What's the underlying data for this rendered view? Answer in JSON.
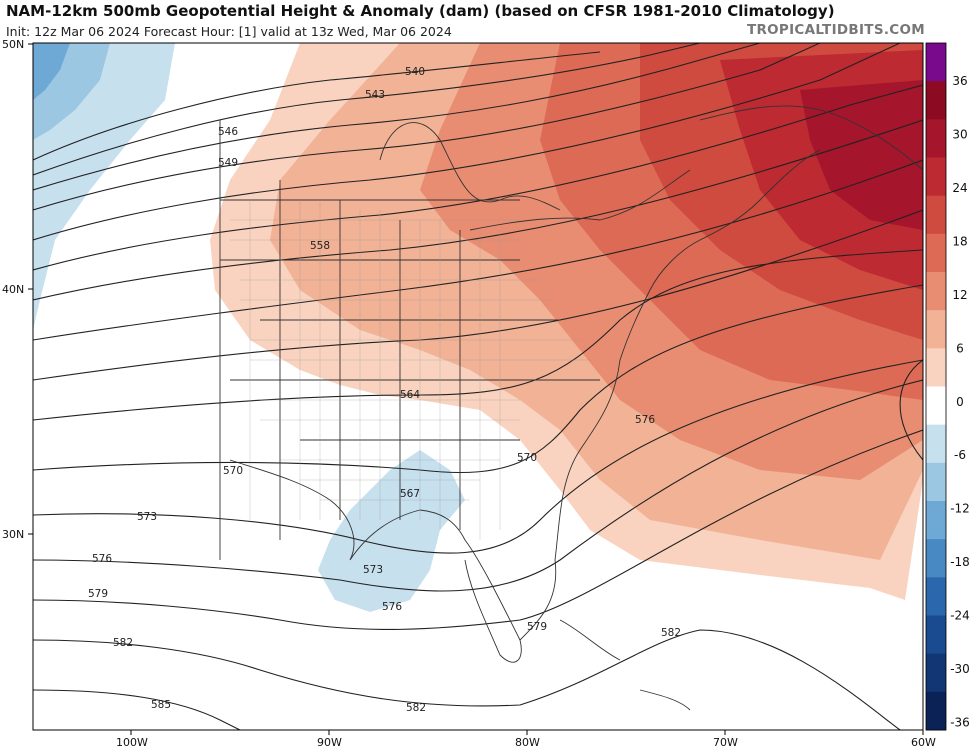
{
  "header": {
    "title": "NAM-12km 500mb Geopotential Height & Anomaly (dam) (based on CFSR 1981-2010 Climatology)",
    "subtitle": "Init: 12z Mar 06 2024   Forecast Hour: [1]   valid at 13z Wed, Mar 06 2024",
    "watermark": "TROPICALTIDBITS.COM"
  },
  "axes": {
    "lat_labels": [
      "50N",
      "40N",
      "30N"
    ],
    "lon_labels": [
      "100W",
      "90W",
      "80W",
      "70W",
      "60W"
    ]
  },
  "contours": {
    "labels": [
      "540",
      "543",
      "546",
      "549",
      "558",
      "564",
      "567",
      "570",
      "570",
      "573",
      "573",
      "576",
      "576",
      "576",
      "579",
      "579",
      "582",
      "582",
      "582",
      "585"
    ]
  },
  "colorbar": {
    "ticks": [
      "36",
      "30",
      "24",
      "18",
      "12",
      "6",
      "0",
      "-6",
      "-12",
      "-18",
      "-24",
      "-30",
      "-36"
    ],
    "colors": [
      "#7a0a8c",
      "#8c0a22",
      "#a5152b",
      "#bd2a32",
      "#cf4a3f",
      "#dc6a55",
      "#e88d72",
      "#f2b296",
      "#f9d3bf",
      "#ffffff",
      "#c7e0ee",
      "#9cc7e2",
      "#6ea8d4",
      "#4889c3",
      "#2a67ad",
      "#1a4a90",
      "#123674",
      "#0b2257"
    ]
  },
  "icons": [
    "colorbar"
  ]
}
